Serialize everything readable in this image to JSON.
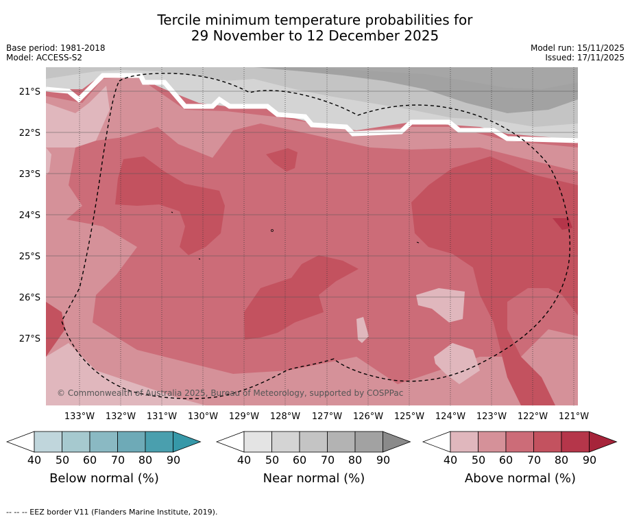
{
  "title_line1": "Tercile minimum temperature probabilities for",
  "title_line2": "29 November to 12 December 2025",
  "base_period": "Base period: 1981-2018",
  "model": "Model: ACCESS-S2",
  "model_run": "Model run: 15/11/2025",
  "issued": "Issued: 17/11/2025",
  "copyright": "© Commonwealth of Australia 2025, Bureau of Meteorology, supported by COSPPac",
  "lat_labels": [
    "21°S",
    "22°S",
    "23°S",
    "24°S",
    "25°S",
    "26°S",
    "27°S"
  ],
  "lon_labels": [
    "133°W",
    "132°W",
    "131°W",
    "130°W",
    "129°W",
    "128°W",
    "127°W",
    "126°W",
    "125°W",
    "124°W",
    "123°W",
    "122°W",
    "121°W"
  ],
  "colorbars": [
    {
      "label": "Below normal (%)",
      "ticks": [
        "40",
        "50",
        "60",
        "70",
        "80",
        "90"
      ],
      "colors": [
        "#c0d6dc",
        "#a6c9cf",
        "#8ab9c3",
        "#6eaab7",
        "#4a9fae"
      ],
      "extend": "#3698a8"
    },
    {
      "label": "Near normal (%)",
      "ticks": [
        "40",
        "50",
        "60",
        "70",
        "80",
        "90"
      ],
      "colors": [
        "#e4e4e4",
        "#d4d4d4",
        "#c4c4c4",
        "#b3b3b3",
        "#a2a2a2"
      ],
      "extend": "#8a8a8a"
    },
    {
      "label": "Above normal (%)",
      "ticks": [
        "40",
        "50",
        "60",
        "70",
        "80",
        "90"
      ],
      "colors": [
        "#e0b7bd",
        "#d59199",
        "#cc6c78",
        "#c3525f",
        "#b5364a"
      ],
      "extend": "#a6243a"
    }
  ],
  "footer": "--  --  -- EEZ border V11 (Flanders Marine Institute, 2019)."
}
